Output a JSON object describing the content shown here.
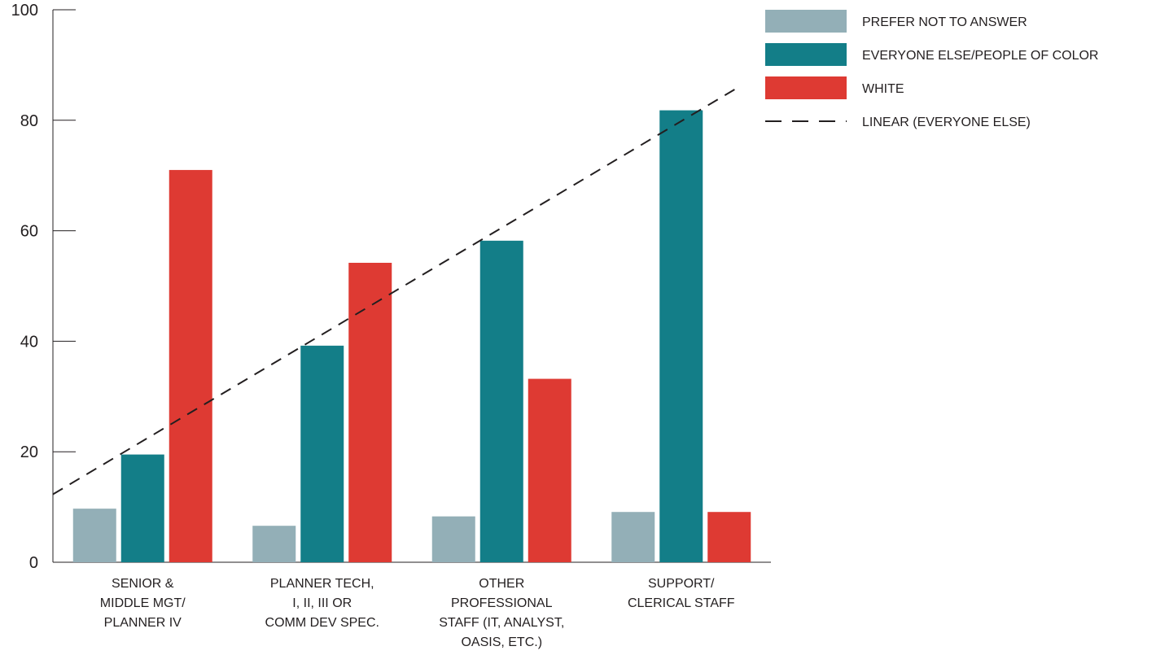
{
  "chart_data": {
    "type": "bar",
    "categories": [
      [
        "SENIOR &",
        "MIDDLE MGT/",
        "PLANNER IV"
      ],
      [
        "PLANNER TECH,",
        "I, II, III OR",
        "COMM DEV SPEC."
      ],
      [
        "OTHER",
        "PROFESSIONAL",
        "STAFF (IT, ANALYST,",
        "OASIS, ETC.)"
      ],
      [
        "SUPPORT/",
        "CLERICAL STAFF"
      ]
    ],
    "series": [
      {
        "name": "PREFER  NOT TO ANSWER",
        "color": "#93afb7",
        "values": [
          9.7,
          6.6,
          8.3,
          9.1
        ]
      },
      {
        "name": "EVERYONE ELSE/PEOPLE OF COLOR",
        "color": "#137e88",
        "values": [
          19.5,
          39.2,
          58.2,
          81.8
        ]
      },
      {
        "name": "WHITE",
        "color": "#de3a33",
        "values": [
          71.0,
          54.2,
          33.2,
          9.1
        ]
      }
    ],
    "trendline": {
      "name": "LINEAR (EVERYONE ELSE)",
      "start": 12.3,
      "end": 85.8,
      "color": "#231f20"
    },
    "ylim": [
      0,
      100
    ],
    "yticks": [
      "0",
      "20",
      "40",
      "60",
      "80",
      "100"
    ],
    "title": "",
    "xlabel": "",
    "ylabel": "",
    "legend_position": "top-right",
    "grid": false
  }
}
